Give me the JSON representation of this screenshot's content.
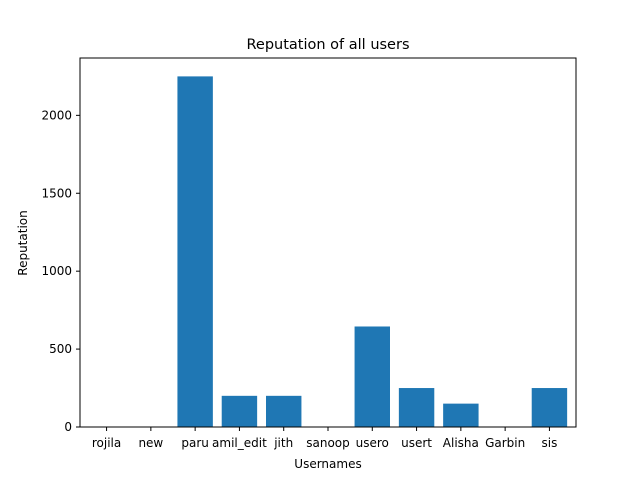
{
  "chart_data": {
    "type": "bar",
    "title": "Reputation of all users",
    "xlabel": "Usernames",
    "ylabel": "Reputation",
    "categories": [
      "rojila",
      "new",
      "paru",
      "amil_edit",
      "jith",
      "sanoop",
      "usero",
      "usert",
      "Alisha",
      "Garbin",
      "sis"
    ],
    "values": [
      1,
      1,
      2250,
      200,
      200,
      1,
      645,
      250,
      150,
      1,
      250
    ],
    "ylim": [
      0,
      2368
    ],
    "yticks": [
      0,
      500,
      1000,
      1500,
      2000
    ],
    "grid": false,
    "bar_color": "#1f77b4"
  }
}
